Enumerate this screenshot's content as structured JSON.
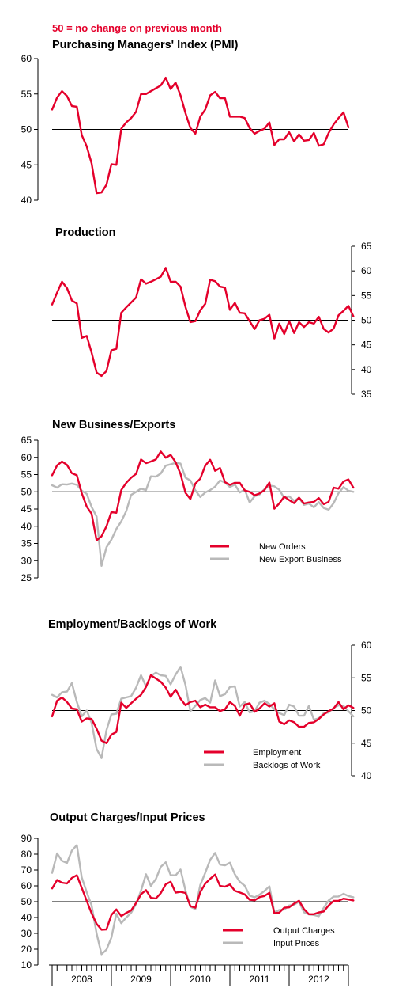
{
  "header": {
    "note": "50 =  no change on previous month"
  },
  "colors": {
    "red": "#e4002b",
    "grey": "#b9b9b9",
    "axis": "#000000"
  },
  "x_axis": {
    "labels": [
      "2008",
      "2009",
      "2010",
      "2011",
      "2012"
    ],
    "months": 60,
    "start": "2008-01"
  },
  "chart_data": [
    {
      "type": "line",
      "title": "Purchasing Managers' Index (PMI)",
      "ylim": [
        40,
        60
      ],
      "yticks": [
        40,
        45,
        50,
        55,
        60
      ],
      "axis_side": "left",
      "reference": 50,
      "series": [
        {
          "values": [
            52.8,
            54.5,
            55.4,
            54.7,
            53.3,
            53.2,
            49.2,
            47.6,
            45.2,
            41.0,
            41.1,
            42.2,
            45.1,
            45.0,
            50.1,
            51.0,
            51.6,
            52.5,
            55.0,
            55.0,
            55.4,
            55.8,
            56.2,
            57.3,
            55.7,
            56.6,
            54.8,
            52.3,
            50.2,
            49.4,
            51.8,
            52.8,
            54.8,
            55.3,
            54.4,
            54.4,
            51.8,
            51.8,
            51.8,
            51.6,
            50.2,
            49.4,
            49.8,
            50.1,
            51.0,
            47.8,
            48.6,
            48.6,
            49.6,
            48.3,
            49.3,
            48.4,
            48.5,
            49.5,
            47.7,
            47.9,
            49.5,
            50.7,
            51.6,
            52.4,
            50.3
          ],
          "color": "red"
        }
      ]
    },
    {
      "type": "line",
      "title": "Production",
      "ylim": [
        35,
        65
      ],
      "yticks": [
        35,
        40,
        45,
        50,
        55,
        60,
        65
      ],
      "axis_side": "right",
      "reference": 50,
      "series": [
        {
          "values": [
            53.2,
            55.6,
            57.8,
            56.5,
            54.0,
            53.4,
            46.4,
            46.8,
            43.4,
            39.4,
            38.7,
            39.7,
            43.9,
            44.2,
            51.5,
            52.6,
            53.6,
            54.6,
            58.3,
            57.4,
            57.8,
            58.3,
            58.8,
            60.6,
            57.8,
            57.8,
            56.8,
            52.7,
            49.6,
            49.8,
            52.0,
            53.3,
            58.2,
            57.9,
            56.8,
            56.6,
            52.1,
            53.5,
            51.5,
            51.4,
            49.8,
            48.2,
            50.0,
            50.3,
            51.1,
            46.3,
            49.3,
            47.2,
            49.8,
            47.4,
            49.6,
            48.6,
            49.6,
            49.3,
            50.7,
            48.2,
            47.5,
            48.3,
            51.0,
            51.9,
            52.9,
            50.8
          ],
          "color": "red"
        }
      ]
    },
    {
      "type": "line",
      "title": "New Business/Exports",
      "ylim": [
        25,
        65
      ],
      "yticks": [
        25,
        30,
        35,
        40,
        45,
        50,
        55,
        60,
        65
      ],
      "axis_side": "left",
      "reference": 50,
      "legend_position": "bottom-right",
      "series": [
        {
          "name": "New Export Business",
          "values": [
            51.9,
            51.2,
            52.2,
            52.1,
            52.4,
            52.0,
            50.3,
            49.4,
            45.6,
            42.8,
            28.5,
            33.9,
            36.1,
            39.2,
            41.4,
            44.4,
            49.1,
            50.0,
            50.9,
            50.5,
            54.5,
            54.4,
            55.3,
            57.6,
            58.0,
            58.4,
            58.2,
            54.1,
            53.3,
            50.4,
            48.5,
            49.8,
            50.5,
            51.5,
            53.3,
            52.7,
            51.4,
            52.1,
            49.8,
            50.6,
            46.9,
            48.7,
            49.2,
            50.8,
            51.8,
            51.6,
            50.6,
            48.2,
            48.7,
            47.4,
            48.2,
            46.2,
            46.6,
            45.5,
            47.0,
            45.3,
            44.8,
            46.7,
            49.6,
            51.4,
            50.3,
            50.0
          ],
          "color": "grey"
        },
        {
          "name": "New Orders",
          "values": [
            54.8,
            57.7,
            58.8,
            57.8,
            55.4,
            54.8,
            49.6,
            45.7,
            43.6,
            35.9,
            37.1,
            40.0,
            44.1,
            43.9,
            50.5,
            52.6,
            54.1,
            55.2,
            59.4,
            58.3,
            58.8,
            59.4,
            61.7,
            59.9,
            60.7,
            58.6,
            55.2,
            49.7,
            47.9,
            52.4,
            53.8,
            57.6,
            59.3,
            56.1,
            56.9,
            52.8,
            52.0,
            52.6,
            52.6,
            50.4,
            50.0,
            49.0,
            49.5,
            50.5,
            52.7,
            45.1,
            46.6,
            48.6,
            47.6,
            46.7,
            48.3,
            46.6,
            46.9,
            47.1,
            48.2,
            46.4,
            47.1,
            51.2,
            50.9,
            53.0,
            53.6,
            51.2
          ],
          "color": "red"
        }
      ]
    },
    {
      "type": "line",
      "title": "Employment/Backlogs of Work",
      "ylim": [
        40,
        60
      ],
      "yticks": [
        40,
        45,
        50,
        55,
        60
      ],
      "axis_side": "right",
      "reference": 50,
      "legend_position": "bottom-right",
      "series": [
        {
          "name": "Backlogs of Work",
          "values": [
            52.4,
            52.0,
            52.8,
            52.9,
            54.2,
            51.3,
            49.1,
            50.0,
            48.1,
            44.1,
            42.7,
            47.0,
            49.4,
            49.5,
            51.8,
            52.0,
            52.2,
            53.5,
            55.4,
            53.7,
            55.3,
            55.8,
            55.4,
            55.3,
            54.0,
            55.5,
            56.7,
            53.9,
            49.9,
            50.7,
            51.6,
            51.9,
            51.2,
            54.6,
            52.2,
            52.5,
            53.6,
            53.7,
            50.6,
            51.3,
            49.7,
            49.9,
            51.2,
            51.5,
            51.0,
            50.2,
            49.6,
            49.3,
            50.9,
            50.6,
            49.2,
            49.2,
            50.7,
            48.6,
            48.8,
            49.6,
            49.7,
            50.4,
            50.8,
            50.7,
            49.9,
            49.1
          ],
          "color": "grey"
        },
        {
          "name": "Employment",
          "values": [
            49.1,
            51.5,
            52.0,
            51.3,
            50.3,
            50.2,
            48.3,
            48.8,
            48.7,
            47.2,
            45.4,
            45.0,
            46.3,
            46.7,
            51.2,
            50.4,
            51.1,
            51.8,
            52.4,
            53.6,
            55.4,
            54.9,
            54.4,
            53.5,
            52.1,
            53.2,
            51.8,
            50.8,
            51.3,
            51.5,
            50.5,
            50.9,
            50.5,
            50.5,
            49.9,
            50.2,
            51.3,
            50.7,
            49.2,
            50.9,
            51.1,
            49.8,
            50.3,
            51.1,
            50.6,
            51.1,
            48.3,
            47.9,
            48.5,
            48.2,
            47.5,
            47.5,
            48.1,
            48.2,
            48.7,
            49.4,
            49.9,
            50.3,
            51.3,
            50.2,
            50.8,
            50.4
          ],
          "color": "red"
        }
      ]
    },
    {
      "type": "line",
      "title": "Output Charges/Input Prices",
      "ylim": [
        10,
        90
      ],
      "yticks": [
        10,
        20,
        30,
        40,
        50,
        60,
        70,
        80,
        90
      ],
      "axis_side": "left",
      "reference": 50,
      "legend_position": "bottom-right",
      "series": [
        {
          "name": "Input Prices",
          "values": [
            68.2,
            80.5,
            75.8,
            74.5,
            82.3,
            85.7,
            65.3,
            56.0,
            47.6,
            29.9,
            16.8,
            19.7,
            27.3,
            42.4,
            36.4,
            40.0,
            43.0,
            48.6,
            57.0,
            67.3,
            60.0,
            64.3,
            72.0,
            74.9,
            66.8,
            66.6,
            70.3,
            57.1,
            46.8,
            45.3,
            60.5,
            68.2,
            76.4,
            80.8,
            73.4,
            73.0,
            74.6,
            67.3,
            62.6,
            60.1,
            53.8,
            52.8,
            54.4,
            56.8,
            59.7,
            43.3,
            44.8,
            45.0,
            47.6,
            48.1,
            50.0,
            43.3,
            41.9,
            41.6,
            40.8,
            46.1,
            50.8,
            53.2,
            53.3,
            55.0,
            53.6,
            52.8
          ],
          "color": "grey"
        },
        {
          "name": "Output Charges",
          "values": [
            58.4,
            63.7,
            62.0,
            61.5,
            65.0,
            66.7,
            58.7,
            50.5,
            42.6,
            36.0,
            32.3,
            32.5,
            41.6,
            45.1,
            40.9,
            42.9,
            44.5,
            49.2,
            54.7,
            57.3,
            52.5,
            52.0,
            55.4,
            61.0,
            62.6,
            55.7,
            56.2,
            55.5,
            47.2,
            46.2,
            56.0,
            61.4,
            64.4,
            67.1,
            60.0,
            59.5,
            60.9,
            56.9,
            55.8,
            54.6,
            51.2,
            50.9,
            52.9,
            53.6,
            55.6,
            42.7,
            43.1,
            46.2,
            46.4,
            48.8,
            50.6,
            45.3,
            42.1,
            42.1,
            43.2,
            43.8,
            47.6,
            50.5,
            50.6,
            51.9,
            51.4,
            50.8
          ],
          "color": "red"
        }
      ]
    }
  ]
}
